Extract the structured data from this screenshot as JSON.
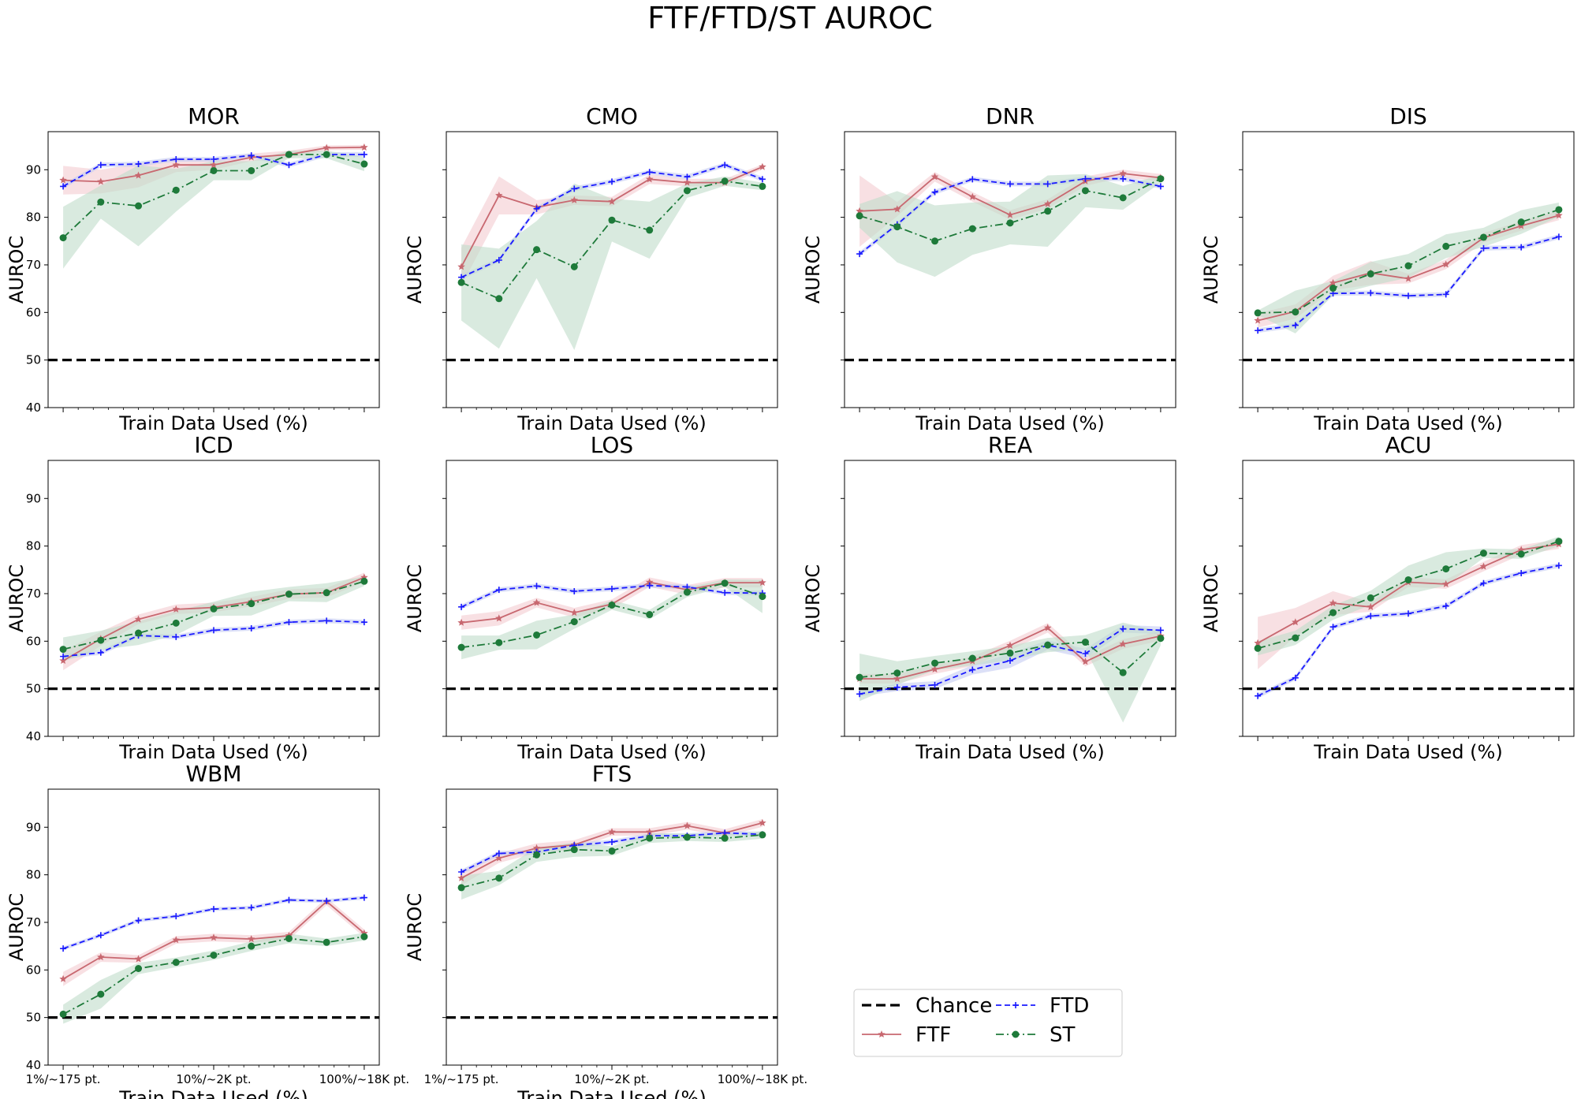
{
  "figure": {
    "title": "FTF/FTD/ST AUROC"
  },
  "legend": {
    "entries": [
      {
        "label": "Chance",
        "color": "#000000",
        "style": "dashed"
      },
      {
        "label": "FTD",
        "color": "#1a1aff",
        "style": "dashed",
        "marker": "plus"
      },
      {
        "label": "FTF",
        "color": "#c86870",
        "style": "solid",
        "marker": "star"
      },
      {
        "label": "ST",
        "color": "#1e7a3a",
        "style": "dashdot",
        "marker": "circle"
      }
    ]
  },
  "colors": {
    "FTF": "#c86870",
    "FTF_band": "#f2c7cc",
    "FTD": "#1a1aff",
    "FTD_band": "#c5cbf2",
    "ST": "#1e7a3a",
    "ST_band": "#bfdcc9",
    "chance": "#000000"
  },
  "chart_data": [
    {
      "type": "line",
      "title": "MOR",
      "xlabel": "Train Data Used (%)",
      "ylabel": "AUROC",
      "ylim": [
        40,
        98
      ],
      "yticks": [
        40,
        50,
        60,
        70,
        80,
        90
      ],
      "chance": 50,
      "x": [
        1,
        2,
        3,
        4,
        5,
        6,
        7,
        8,
        9
      ],
      "xticklabels": [],
      "series": [
        {
          "name": "FTF",
          "values": [
            87.8,
            87.5,
            88.8,
            91,
            91,
            92.6,
            93.2,
            94.6,
            94.7
          ],
          "band": [
            3,
            2.5,
            2.5,
            1.5,
            1,
            0.8,
            0.8,
            0.5,
            0.5
          ]
        },
        {
          "name": "FTD",
          "values": [
            86.5,
            91,
            91.2,
            92.2,
            92.2,
            93,
            91,
            93.2,
            93.2
          ],
          "band": [
            0.5,
            0.5,
            0.5,
            0.5,
            0.5,
            0.5,
            0.5,
            0.5,
            0.5
          ]
        },
        {
          "name": "ST",
          "values": [
            75.7,
            83.2,
            82.4,
            85.7,
            89.8,
            89.8,
            93.2,
            93.2,
            91.2
          ],
          "band": [
            6.5,
            3.5,
            8.5,
            4.5,
            2,
            2,
            0.8,
            0.8,
            1.5
          ]
        }
      ]
    },
    {
      "type": "line",
      "title": "CMO",
      "xlabel": "Train Data Used (%)",
      "ylabel": "AUROC",
      "ylim": [
        40,
        98
      ],
      "yticks": [
        40,
        50,
        60,
        70,
        80,
        90
      ],
      "chance": 50,
      "x": [
        1,
        2,
        3,
        4,
        5,
        6,
        7,
        8,
        9
      ],
      "xticklabels": [],
      "series": [
        {
          "name": "FTF",
          "values": [
            69.6,
            84.6,
            82.1,
            83.6,
            83.3,
            88,
            87.3,
            87.3,
            90.6
          ],
          "band": [
            4,
            4,
            1.5,
            1,
            1,
            1,
            0.8,
            0.8,
            0.5
          ]
        },
        {
          "name": "FTD",
          "values": [
            67.4,
            71,
            81.8,
            86,
            87.5,
            89.5,
            88.5,
            91,
            88
          ],
          "band": [
            0.5,
            0.5,
            0.5,
            0.5,
            0.5,
            0.5,
            0.5,
            0.5,
            0.5
          ]
        },
        {
          "name": "ST",
          "values": [
            66.3,
            62.9,
            73.2,
            69.6,
            79.4,
            77.3,
            85.6,
            87.6,
            86.5
          ],
          "band": [
            8,
            10.5,
            6,
            17.5,
            4.5,
            6,
            1.5,
            1,
            0.8
          ]
        }
      ]
    },
    {
      "type": "line",
      "title": "DNR",
      "xlabel": "Train Data Used (%)",
      "ylabel": "AUROC",
      "ylim": [
        40,
        98
      ],
      "yticks": [
        40,
        50,
        60,
        70,
        80,
        90
      ],
      "chance": 50,
      "x": [
        1,
        2,
        3,
        4,
        5,
        6,
        7,
        8,
        9
      ],
      "xticklabels": [],
      "series": [
        {
          "name": "FTF",
          "values": [
            81.3,
            81.7,
            88.5,
            84.3,
            80.5,
            82.8,
            87.6,
            89.2,
            88.3
          ],
          "band": [
            7.5,
            1.5,
            1,
            1,
            1,
            1,
            1,
            0.8,
            0.8
          ]
        },
        {
          "name": "FTD",
          "values": [
            72.3,
            78.5,
            85.3,
            88,
            87,
            87,
            88.1,
            88.1,
            86.5
          ],
          "band": [
            0.5,
            0.5,
            0.5,
            0.5,
            0.5,
            0.5,
            0.5,
            0.5,
            0.5
          ]
        },
        {
          "name": "ST",
          "values": [
            80.3,
            78,
            75,
            77.6,
            78.8,
            81.3,
            85.6,
            84.1,
            88.1
          ],
          "band": [
            2.5,
            7.5,
            7.5,
            5.5,
            4.5,
            7.5,
            3.5,
            2.5,
            0.8
          ]
        }
      ]
    },
    {
      "type": "line",
      "title": "DIS",
      "xlabel": "Train Data Used (%)",
      "ylabel": "AUROC",
      "ylim": [
        40,
        98
      ],
      "yticks": [
        40,
        50,
        60,
        70,
        80,
        90
      ],
      "chance": 50,
      "x": [
        1,
        2,
        3,
        4,
        5,
        6,
        7,
        8,
        9
      ],
      "xticklabels": [],
      "series": [
        {
          "name": "FTF",
          "values": [
            58.3,
            60.2,
            66.2,
            68.3,
            67.1,
            70.1,
            75.7,
            78.2,
            80.4
          ],
          "band": [
            1.5,
            1.5,
            1.5,
            2.5,
            1,
            1,
            1,
            1,
            1
          ]
        },
        {
          "name": "FTD",
          "values": [
            56.2,
            57.3,
            64,
            64.1,
            63.5,
            63.8,
            73.5,
            73.7,
            75.9
          ],
          "band": [
            0.5,
            0.5,
            0.5,
            0.5,
            0.5,
            0.5,
            0.5,
            0.5,
            0.5
          ]
        },
        {
          "name": "ST",
          "values": [
            59.9,
            60.1,
            65.1,
            68.1,
            69.8,
            73.9,
            75.8,
            79,
            81.6
          ],
          "band": [
            0.5,
            4.5,
            1.5,
            2.5,
            2.5,
            2.5,
            2,
            2.5,
            1.5
          ]
        }
      ]
    },
    {
      "type": "line",
      "title": "ICD",
      "xlabel": "Train Data Used (%)",
      "ylabel": "AUROC",
      "ylim": [
        40,
        98
      ],
      "yticks": [
        40,
        50,
        60,
        70,
        80,
        90
      ],
      "chance": 50,
      "x": [
        1,
        2,
        3,
        4,
        5,
        6,
        7,
        8,
        9
      ],
      "xticklabels": [],
      "series": [
        {
          "name": "FTF",
          "values": [
            55.9,
            60.5,
            64.6,
            66.7,
            67.1,
            68.3,
            69.9,
            70.2,
            73.4
          ],
          "band": [
            2,
            1.5,
            1,
            1,
            1,
            1,
            1,
            1,
            1
          ]
        },
        {
          "name": "FTD",
          "values": [
            56.8,
            57.6,
            61.2,
            60.9,
            62.3,
            62.7,
            64,
            64.3,
            64
          ],
          "band": [
            0.5,
            0.5,
            0.5,
            0.5,
            0.5,
            0.5,
            0.5,
            0.5,
            0.5
          ]
        },
        {
          "name": "ST",
          "values": [
            58.3,
            60.2,
            61.7,
            63.8,
            66.8,
            67.9,
            69.9,
            70.2,
            72.6
          ],
          "band": [
            2.5,
            2,
            2.5,
            2.5,
            1.5,
            2.5,
            1.5,
            2,
            1
          ]
        }
      ]
    },
    {
      "type": "line",
      "title": "LOS",
      "xlabel": "Train Data Used (%)",
      "ylabel": "AUROC",
      "ylim": [
        40,
        98
      ],
      "yticks": [
        40,
        50,
        60,
        70,
        80,
        90
      ],
      "chance": 50,
      "x": [
        1,
        2,
        3,
        4,
        5,
        6,
        7,
        8,
        9
      ],
      "xticklabels": [],
      "series": [
        {
          "name": "FTF",
          "values": [
            63.9,
            64.8,
            68.1,
            66,
            67.8,
            72.4,
            70.8,
            72.3,
            72.3
          ],
          "band": [
            1.5,
            1.5,
            1,
            1,
            1,
            1,
            1,
            1,
            1
          ]
        },
        {
          "name": "FTD",
          "values": [
            67.2,
            70.8,
            71.6,
            70.5,
            71,
            71.7,
            71.4,
            70.2,
            70.1
          ],
          "band": [
            0.5,
            0.5,
            0.5,
            0.5,
            0.5,
            0.5,
            0.5,
            0.5,
            0.5
          ]
        },
        {
          "name": "ST",
          "values": [
            58.7,
            59.7,
            61.3,
            64.1,
            67.6,
            65.6,
            70.3,
            72.2,
            69.4
          ],
          "band": [
            2.5,
            1.5,
            3,
            1.5,
            1,
            1,
            1,
            0.8,
            3.5
          ]
        }
      ]
    },
    {
      "type": "line",
      "title": "REA",
      "xlabel": "Train Data Used (%)",
      "ylabel": "AUROC",
      "ylim": [
        40,
        98
      ],
      "yticks": [
        40,
        50,
        60,
        70,
        80,
        90
      ],
      "chance": 50,
      "x": [
        1,
        2,
        3,
        4,
        5,
        6,
        7,
        8,
        9
      ],
      "xticklabels": [],
      "series": [
        {
          "name": "FTF",
          "values": [
            52.1,
            52.1,
            54.1,
            55.8,
            59.1,
            62.8,
            55.7,
            59.4,
            61.1
          ],
          "band": [
            1,
            1,
            1,
            1,
            1,
            1,
            1,
            1,
            1
          ]
        },
        {
          "name": "FTD",
          "values": [
            48.9,
            50.3,
            50.8,
            54,
            55.9,
            59.2,
            57.4,
            62.6,
            62.3
          ],
          "band": [
            0.5,
            0.8,
            0.8,
            1,
            1.5,
            1,
            1,
            0.8,
            0.8
          ]
        },
        {
          "name": "ST",
          "values": [
            52.4,
            53.3,
            55.4,
            56.4,
            57.5,
            59.2,
            59.8,
            53.4,
            60.6
          ],
          "band": [
            5,
            2.5,
            1.5,
            1.5,
            1.5,
            1.5,
            1.5,
            10.5,
            1.5
          ]
        }
      ]
    },
    {
      "type": "line",
      "title": "ACU",
      "xlabel": "Train Data Used (%)",
      "ylabel": "AUROC",
      "ylim": [
        40,
        98
      ],
      "yticks": [
        40,
        50,
        60,
        70,
        80,
        90
      ],
      "chance": 50,
      "x": [
        1,
        2,
        3,
        4,
        5,
        6,
        7,
        8,
        9
      ],
      "xticklabels": [],
      "series": [
        {
          "name": "FTF",
          "values": [
            59.6,
            64,
            68,
            67.2,
            72.4,
            72,
            75.7,
            79.2,
            80.4
          ],
          "band": [
            5.5,
            3,
            2.5,
            1,
            1,
            1,
            1,
            1,
            1
          ]
        },
        {
          "name": "FTD",
          "values": [
            48.5,
            52.3,
            63,
            65.3,
            65.8,
            67.4,
            72.2,
            74.3,
            75.9
          ],
          "band": [
            0.5,
            0.5,
            0.5,
            0.5,
            0.5,
            0.5,
            0.5,
            0.5,
            0.5
          ]
        },
        {
          "name": "ST",
          "values": [
            58.5,
            60.7,
            66,
            69.1,
            72.9,
            75.2,
            78.5,
            78.3,
            81
          ],
          "band": [
            1.5,
            1.5,
            1.5,
            1.5,
            3,
            3.5,
            1,
            1,
            1
          ]
        }
      ]
    },
    {
      "type": "line",
      "title": "WBM",
      "xlabel": "Train Data Used (%)",
      "ylabel": "AUROC",
      "ylim": [
        40,
        98
      ],
      "yticks": [
        40,
        50,
        60,
        70,
        80,
        90
      ],
      "chance": 50,
      "x": [
        1,
        2,
        3,
        4,
        5,
        6,
        7,
        8,
        9
      ],
      "xticklabels": [
        "1%/~175 pt.",
        "10%/~2K pt.",
        "100%/~18K pt."
      ],
      "series": [
        {
          "name": "FTF",
          "values": [
            58.1,
            62.7,
            62.3,
            66.3,
            66.8,
            66.5,
            67.2,
            74.4,
            67.7
          ],
          "band": [
            1.5,
            1,
            0.8,
            0.8,
            0.8,
            0.8,
            0.8,
            0.8,
            0.8
          ]
        },
        {
          "name": "FTD",
          "values": [
            64.5,
            67.3,
            70.4,
            71.3,
            72.8,
            73.1,
            74.7,
            74.5,
            75.2
          ],
          "band": [
            0.4,
            0.4,
            0.4,
            0.4,
            0.4,
            0.4,
            0.4,
            0.4,
            0.4
          ]
        },
        {
          "name": "ST",
          "values": [
            50.7,
            54.9,
            60.3,
            61.6,
            63.1,
            65,
            66.6,
            65.8,
            67
          ],
          "band": [
            2,
            3,
            1.2,
            1,
            1,
            1,
            1,
            0.8,
            0.8
          ]
        }
      ]
    },
    {
      "type": "line",
      "title": "FTS",
      "xlabel": "Train Data Used (%)",
      "ylabel": "AUROC",
      "ylim": [
        40,
        98
      ],
      "yticks": [
        40,
        50,
        60,
        70,
        80,
        90
      ],
      "chance": 50,
      "x": [
        1,
        2,
        3,
        4,
        5,
        6,
        7,
        8,
        9
      ],
      "xticklabels": [
        "1%/~175 pt.",
        "10%/~2K pt.",
        "100%/~18K pt."
      ],
      "series": [
        {
          "name": "FTF",
          "values": [
            79.3,
            83.5,
            85.6,
            86.3,
            89,
            89,
            90.3,
            88.8,
            90.9
          ],
          "band": [
            1.5,
            1,
            1,
            1,
            0.8,
            0.8,
            0.8,
            0.8,
            0.8
          ]
        },
        {
          "name": "FTD",
          "values": [
            80.6,
            84.5,
            84.8,
            86.2,
            86.9,
            88.2,
            88.2,
            88.8,
            88.5
          ],
          "band": [
            0.5,
            0.5,
            0.5,
            0.5,
            0.5,
            0.5,
            0.5,
            0.5,
            0.5
          ]
        },
        {
          "name": "ST",
          "values": [
            77.3,
            79.3,
            84.2,
            85.3,
            85,
            87.7,
            87.9,
            87.7,
            88.4
          ],
          "band": [
            2.5,
            1.5,
            1.5,
            1.5,
            1,
            1,
            0.8,
            0.8,
            0.8
          ]
        }
      ]
    }
  ]
}
